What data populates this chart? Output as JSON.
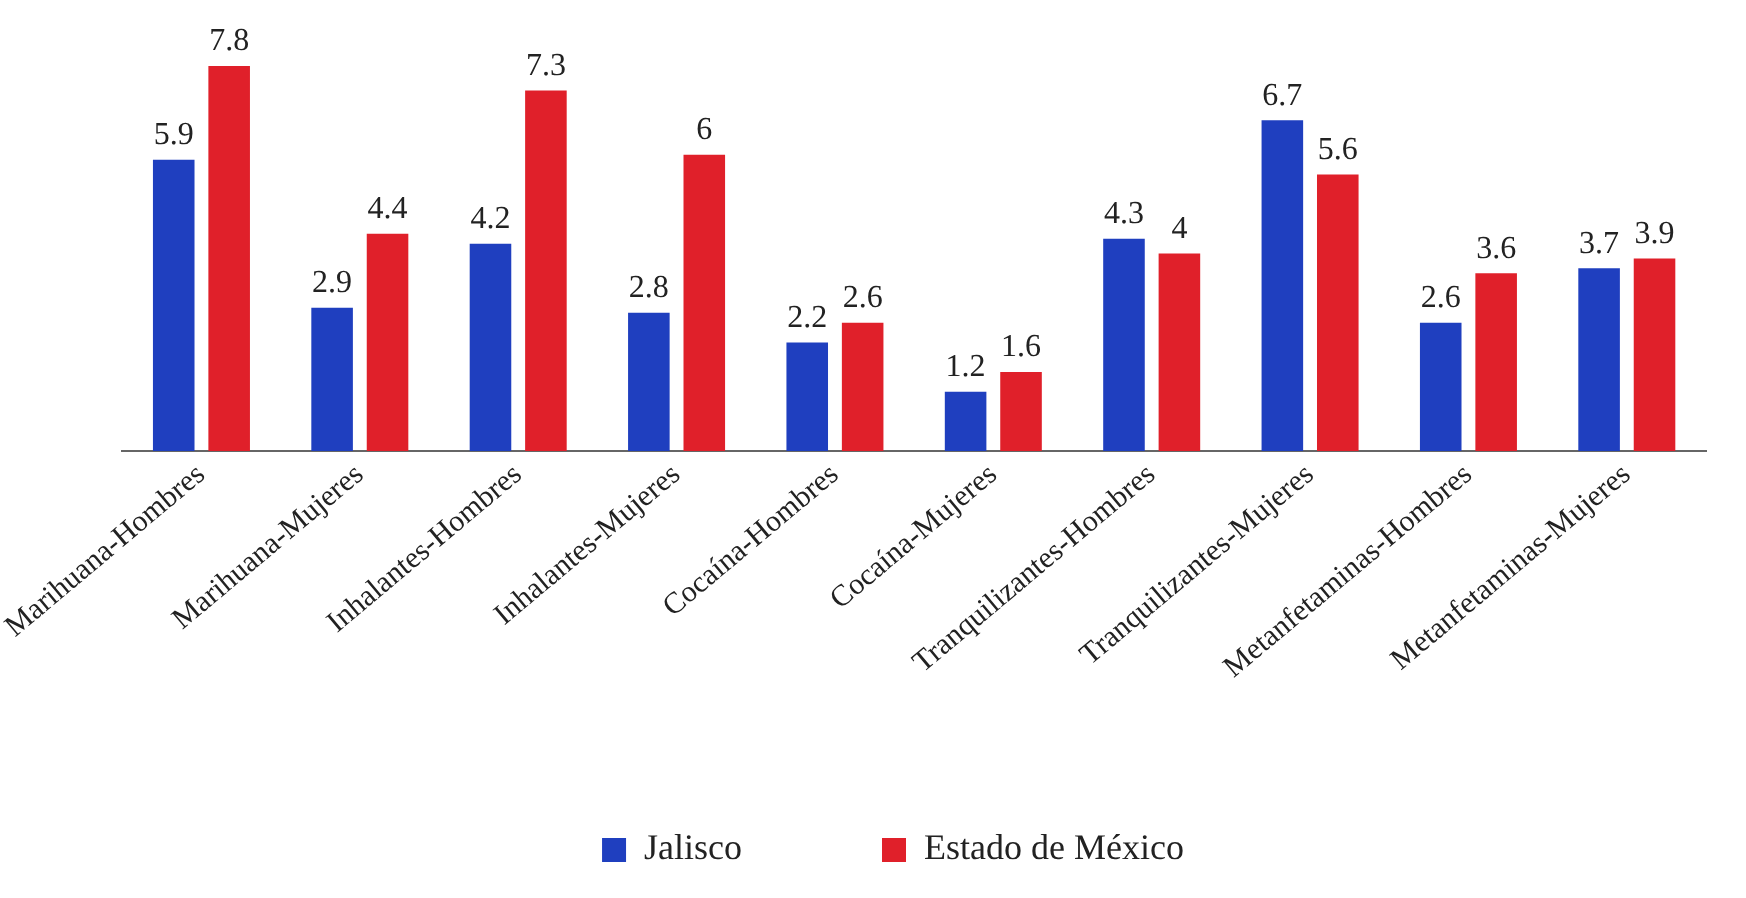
{
  "chart_data": {
    "type": "bar",
    "categories": [
      "Marihuana-Hombres",
      "Marihuana-Mujeres",
      "Inhalantes-Hombres",
      "Inhalantes-Mujeres",
      "Cocaína-Hombres",
      "Cocaína-Mujeres",
      "Tranquilizantes-Hombres",
      "Tranquilizantes-Mujeres",
      "Metanfetaminas-Hombres",
      "Metanfetaminas-Mujeres"
    ],
    "series": [
      {
        "name": "Jalisco",
        "color": "#1f3fbf",
        "values": [
          5.9,
          2.9,
          4.2,
          2.8,
          2.2,
          1.2,
          4.3,
          6.7,
          2.6,
          3.7
        ]
      },
      {
        "name": "Estado de México",
        "color": "#e0202a",
        "values": [
          7.8,
          4.4,
          7.3,
          6,
          2.6,
          1.6,
          4,
          5.6,
          3.6,
          3.9
        ]
      }
    ],
    "data_labels": true,
    "legend": "bottom",
    "grid": false,
    "tick_labels": "x"
  }
}
